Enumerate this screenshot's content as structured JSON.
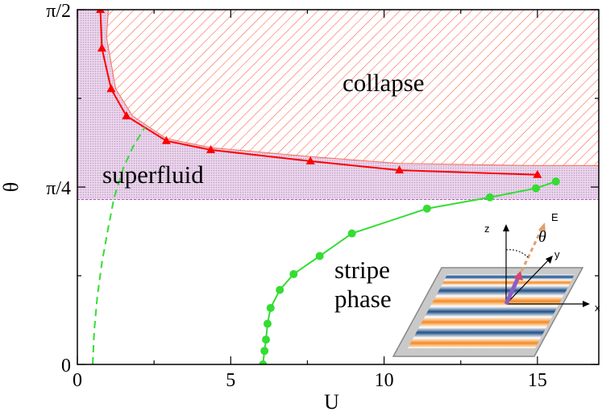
{
  "chart_data": {
    "type": "line",
    "xlabel": "U",
    "ylabel": "θ",
    "xlim": [
      0,
      17
    ],
    "ylim": [
      0,
      1.5708
    ],
    "x_ticks": [
      {
        "value": 0,
        "label": "0"
      },
      {
        "value": 5,
        "label": "5"
      },
      {
        "value": 10,
        "label": "10"
      },
      {
        "value": 15,
        "label": "15"
      }
    ],
    "y_ticks": [
      {
        "value": 0,
        "label": "0"
      },
      {
        "value": 0.7854,
        "label": "π/4"
      },
      {
        "value": 1.5708,
        "label": "π/2"
      }
    ],
    "regions": [
      {
        "label": "collapse",
        "hatch_color": "#ff4a3a",
        "pattern": "diagonal-hatch"
      },
      {
        "label": "superfluid",
        "fill_color": "#c9a3cc",
        "pattern": "dots",
        "lower_bound_theta": 0.73
      },
      {
        "label": "stripe phase"
      }
    ],
    "series": [
      {
        "color": "#ff0000",
        "marker": "triangle",
        "x": [
          0.75,
          0.8,
          1.1,
          1.6,
          2.9,
          4.35,
          7.6,
          10.5,
          15.0
        ],
        "y": [
          1.5708,
          1.4,
          1.22,
          1.1,
          0.99,
          0.95,
          0.9,
          0.86,
          0.84
        ]
      },
      {
        "color": "#33dd33",
        "marker": "circle",
        "x": [
          6.05,
          6.1,
          6.15,
          6.2,
          6.3,
          6.6,
          7.05,
          7.9,
          8.95,
          11.4,
          13.45,
          14.95,
          15.6
        ],
        "y": [
          0.0,
          0.06,
          0.11,
          0.18,
          0.25,
          0.33,
          0.4,
          0.48,
          0.58,
          0.69,
          0.74,
          0.78,
          0.81
        ]
      },
      {
        "color": "#33dd33",
        "style": "dashed",
        "x": [
          0.5,
          0.55,
          0.65,
          0.8,
          1.0,
          1.2,
          1.5,
          1.8,
          2.2
        ],
        "y": [
          0.0,
          0.15,
          0.3,
          0.45,
          0.6,
          0.74,
          0.87,
          0.96,
          1.05
        ]
      }
    ],
    "inset": {
      "description_labels": [
        "z",
        "y",
        "x",
        "E",
        "θ"
      ]
    }
  }
}
